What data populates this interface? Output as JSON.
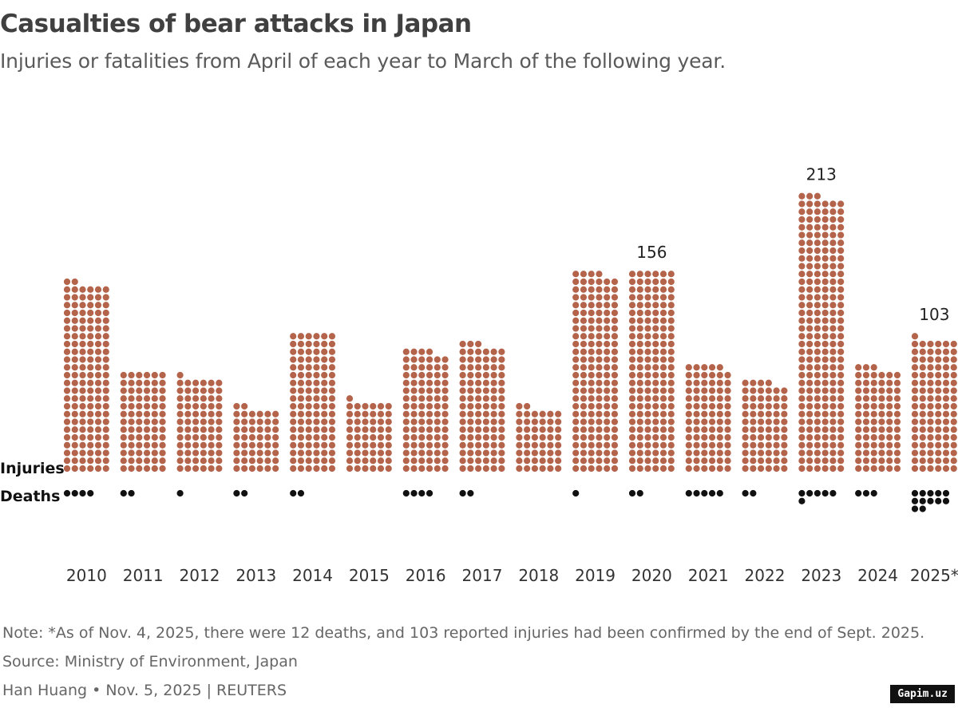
{
  "header": {
    "title": "Casualties of bear attacks in Japan",
    "subtitle": "Injuries or fatalities from April of each year to March of the following year."
  },
  "chart_data": {
    "type": "bar",
    "subtype": "dot-unit-chart",
    "categories": [
      "2010",
      "2011",
      "2012",
      "2013",
      "2014",
      "2015",
      "2016",
      "2017",
      "2018",
      "2019",
      "2020",
      "2021",
      "2022",
      "2023",
      "2024",
      "2025*"
    ],
    "series": [
      {
        "name": "Injuries",
        "values": [
          146,
          78,
          73,
          50,
          108,
          55,
          94,
          99,
          50,
          154,
          156,
          83,
          70,
          213,
          81,
          103
        ],
        "color": "#b4644a"
      },
      {
        "name": "Deaths",
        "values": [
          4,
          2,
          1,
          2,
          2,
          0,
          4,
          2,
          0,
          1,
          2,
          5,
          2,
          6,
          3,
          12
        ],
        "color": "#111111"
      }
    ],
    "data_labels": [
      {
        "category": "2020",
        "text": "156"
      },
      {
        "category": "2023",
        "text": "213"
      },
      {
        "category": "2025*",
        "text": "103"
      }
    ],
    "legend": "left"
  },
  "footer": {
    "note": "Note: *As of Nov. 4, 2025, there were 12 deaths, and 103 reported injuries had been confirmed by the end of Sept. 2025.",
    "source": "Source: Ministry of Environment, Japan",
    "credit": "Han Huang • Nov. 5, 2025 | REUTERS"
  },
  "watermark": "Gapim.uz"
}
